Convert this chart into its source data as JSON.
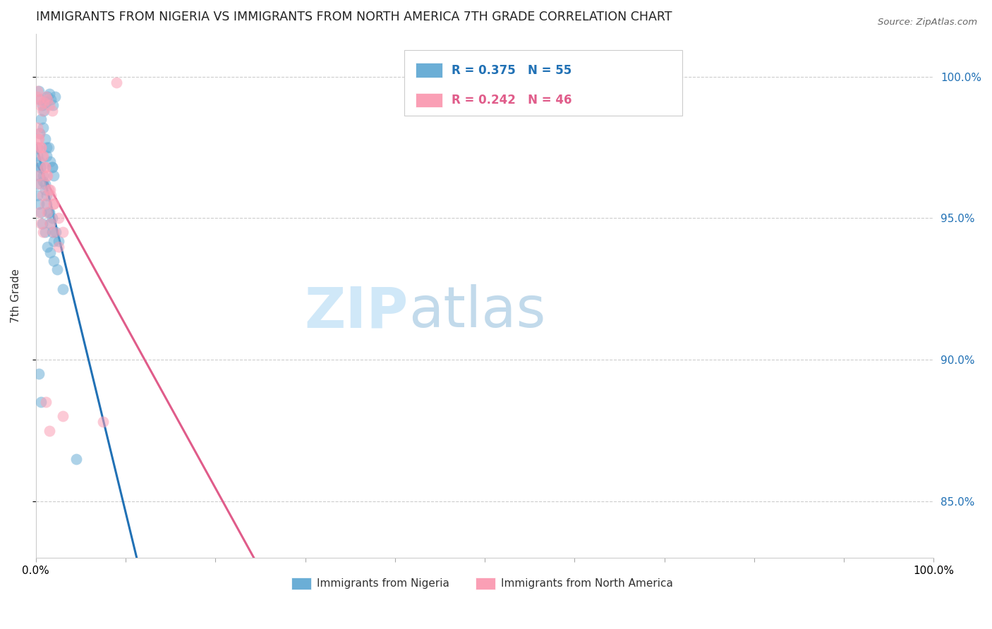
{
  "title": "IMMIGRANTS FROM NIGERIA VS IMMIGRANTS FROM NORTH AMERICA 7TH GRADE CORRELATION CHART",
  "source": "Source: ZipAtlas.com",
  "ylabel": "7th Grade",
  "R1": 0.375,
  "N1": 55,
  "R2": 0.242,
  "N2": 46,
  "color1": "#6baed6",
  "color2": "#fa9fb5",
  "trendline1_color": "#2171b5",
  "trendline2_color": "#e05c8a",
  "watermark_left": "ZIP",
  "watermark_right": "atlas",
  "legend1_label": "Immigrants from Nigeria",
  "legend2_label": "Immigrants from North America",
  "xlim": [
    0,
    100
  ],
  "ylim": [
    83,
    101.5
  ],
  "yticks": [
    85,
    90,
    95,
    100
  ],
  "nigeria_x": [
    0.3,
    0.5,
    0.7,
    0.9,
    1.1,
    1.3,
    1.5,
    1.7,
    1.9,
    2.1,
    0.2,
    0.4,
    0.6,
    0.8,
    1.0,
    1.2,
    1.4,
    1.6,
    1.8,
    2.0,
    0.1,
    0.3,
    0.5,
    0.8,
    1.0,
    1.2,
    1.5,
    1.8,
    2.2,
    2.5,
    0.15,
    0.35,
    0.55,
    0.75,
    1.0,
    1.3,
    1.6,
    2.0,
    2.4,
    3.0,
    0.2,
    0.4,
    0.6,
    0.8,
    1.0,
    1.2,
    1.4,
    1.6,
    1.8,
    2.0,
    0.3,
    0.6,
    4.5,
    1.2,
    1.8
  ],
  "nigeria_y": [
    99.5,
    99.2,
    99.0,
    98.8,
    99.1,
    99.3,
    99.4,
    99.2,
    99.0,
    99.3,
    97.5,
    98.0,
    98.5,
    98.2,
    97.8,
    97.2,
    97.5,
    97.0,
    96.8,
    96.5,
    96.2,
    96.5,
    96.8,
    96.3,
    96.0,
    95.5,
    95.2,
    95.0,
    94.5,
    94.2,
    95.8,
    95.5,
    95.2,
    94.8,
    94.5,
    94.0,
    93.8,
    93.5,
    93.2,
    92.5,
    97.2,
    97.0,
    96.8,
    96.5,
    96.2,
    95.8,
    95.2,
    94.8,
    94.5,
    94.2,
    89.5,
    88.5,
    86.5,
    97.5,
    96.8
  ],
  "north_america_x": [
    0.1,
    0.2,
    0.3,
    0.5,
    0.7,
    0.9,
    1.1,
    1.3,
    1.5,
    1.8,
    0.15,
    0.25,
    0.4,
    0.6,
    0.8,
    1.0,
    1.2,
    1.4,
    1.7,
    2.0,
    0.2,
    0.35,
    0.55,
    0.75,
    1.0,
    1.3,
    1.6,
    2.0,
    2.5,
    3.0,
    0.3,
    0.5,
    0.7,
    1.0,
    1.3,
    1.6,
    2.0,
    2.5,
    3.0,
    7.5,
    0.4,
    0.6,
    0.8,
    1.1,
    1.5,
    9.0
  ],
  "north_america_y": [
    99.3,
    99.5,
    99.2,
    99.0,
    98.8,
    99.1,
    99.3,
    99.2,
    99.0,
    98.8,
    97.5,
    97.8,
    98.0,
    97.5,
    97.2,
    96.8,
    96.5,
    96.0,
    95.8,
    95.5,
    98.2,
    97.8,
    97.5,
    97.2,
    96.8,
    96.5,
    96.0,
    95.5,
    95.0,
    94.5,
    96.5,
    96.2,
    95.8,
    95.5,
    95.2,
    94.8,
    94.5,
    94.0,
    88.0,
    87.8,
    95.2,
    94.8,
    94.5,
    88.5,
    87.5,
    99.8
  ],
  "trendline1_x_start": 0,
  "trendline1_x_end": 100,
  "trendline2_x_start": 0,
  "trendline2_x_end": 100
}
